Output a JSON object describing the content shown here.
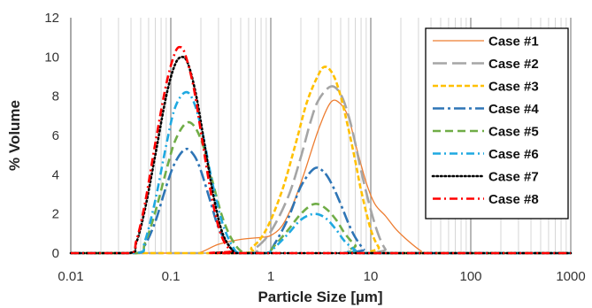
{
  "chart_data": {
    "type": "line",
    "xscale": "log",
    "xlim": [
      0.01,
      1000
    ],
    "ylim": [
      0,
      12
    ],
    "xlabel": "Particle Size [µm]",
    "ylabel": "% Volume",
    "xticks": [
      "0.01",
      "0.1",
      "1",
      "10",
      "100",
      "1000"
    ],
    "xtick_values": [
      0.01,
      0.1,
      1,
      10,
      100,
      1000
    ],
    "yticks": [
      "0",
      "2",
      "4",
      "6",
      "8",
      "10",
      "12"
    ],
    "ytick_values": [
      0,
      2,
      4,
      6,
      8,
      10,
      12
    ],
    "grid": "vertical minor and major, log scale",
    "legend_position": "top-right",
    "series": [
      {
        "name": "Case #1",
        "color": "#ED7D31",
        "dash": "solid",
        "points": [
          [
            0.01,
            0
          ],
          [
            0.15,
            0
          ],
          [
            0.2,
            0.05
          ],
          [
            0.3,
            0.45
          ],
          [
            0.5,
            0.7
          ],
          [
            0.8,
            0.8
          ],
          [
            1,
            0.9
          ],
          [
            1.3,
            1.4
          ],
          [
            1.7,
            2.6
          ],
          [
            2.2,
            4.2
          ],
          [
            3,
            6.3
          ],
          [
            4,
            7.7
          ],
          [
            5,
            7.6
          ],
          [
            6,
            6.9
          ],
          [
            7,
            5.6
          ],
          [
            9,
            3.6
          ],
          [
            11,
            2.5
          ],
          [
            14,
            1.9
          ],
          [
            18,
            1.2
          ],
          [
            24,
            0.6
          ],
          [
            32,
            0.1
          ],
          [
            36,
            0
          ],
          [
            1000,
            0
          ]
        ]
      },
      {
        "name": "Case #2",
        "color": "#A5A5A5",
        "dash": "long-dash",
        "points": [
          [
            0.01,
            0
          ],
          [
            0.5,
            0
          ],
          [
            0.7,
            0.25
          ],
          [
            1,
            1.1
          ],
          [
            1.5,
            2.9
          ],
          [
            2,
            4.9
          ],
          [
            2.5,
            6.7
          ],
          [
            3,
            7.8
          ],
          [
            4,
            8.5
          ],
          [
            5,
            8.1
          ],
          [
            6,
            7.0
          ],
          [
            7,
            5.6
          ],
          [
            8,
            4.2
          ],
          [
            10,
            2.2
          ],
          [
            12,
            0.9
          ],
          [
            14,
            0.2
          ],
          [
            16,
            0
          ],
          [
            1000,
            0
          ]
        ]
      },
      {
        "name": "Case #3",
        "color": "#FFC000",
        "dash": "short-dash",
        "points": [
          [
            0.01,
            0
          ],
          [
            0.45,
            0
          ],
          [
            0.65,
            0.3
          ],
          [
            0.9,
            1.2
          ],
          [
            1.3,
            3.2
          ],
          [
            1.8,
            5.7
          ],
          [
            2.3,
            7.7
          ],
          [
            3,
            9.1
          ],
          [
            3.5,
            9.5
          ],
          [
            4.2,
            9.1
          ],
          [
            5,
            8.0
          ],
          [
            6,
            6.3
          ],
          [
            7,
            4.7
          ],
          [
            8,
            3.2
          ],
          [
            10,
            1.2
          ],
          [
            12,
            0.3
          ],
          [
            14,
            0
          ],
          [
            1000,
            0
          ]
        ]
      },
      {
        "name": "Case #4",
        "color": "#2E75B6",
        "dash": "long-dash-dot",
        "points": [
          [
            0.01,
            0
          ],
          [
            0.045,
            0
          ],
          [
            0.055,
            0.4
          ],
          [
            0.07,
            1.6
          ],
          [
            0.09,
            3.4
          ],
          [
            0.11,
            4.6
          ],
          [
            0.14,
            5.3
          ],
          [
            0.17,
            5.0
          ],
          [
            0.2,
            4.2
          ],
          [
            0.25,
            2.6
          ],
          [
            0.3,
            1.3
          ],
          [
            0.38,
            0.4
          ],
          [
            0.48,
            0
          ],
          [
            0.9,
            0
          ],
          [
            1.1,
            0.5
          ],
          [
            1.5,
            1.8
          ],
          [
            2,
            3.4
          ],
          [
            2.7,
            4.3
          ],
          [
            3.3,
            4.2
          ],
          [
            4,
            3.6
          ],
          [
            5,
            2.5
          ],
          [
            6,
            1.5
          ],
          [
            7,
            0.8
          ],
          [
            8.5,
            0.2
          ],
          [
            10,
            0
          ],
          [
            1000,
            0
          ]
        ]
      },
      {
        "name": "Case #5",
        "color": "#70AD47",
        "dash": "medium-dash",
        "points": [
          [
            0.01,
            0
          ],
          [
            0.045,
            0
          ],
          [
            0.055,
            0.5
          ],
          [
            0.07,
            2.1
          ],
          [
            0.09,
            4.2
          ],
          [
            0.11,
            5.7
          ],
          [
            0.14,
            6.6
          ],
          [
            0.17,
            6.5
          ],
          [
            0.21,
            5.5
          ],
          [
            0.26,
            3.7
          ],
          [
            0.33,
            1.8
          ],
          [
            0.42,
            0.6
          ],
          [
            0.55,
            0
          ],
          [
            0.9,
            0
          ],
          [
            1.1,
            0.4
          ],
          [
            1.5,
            1.2
          ],
          [
            2,
            2.0
          ],
          [
            2.7,
            2.5
          ],
          [
            3.5,
            2.3
          ],
          [
            4.5,
            1.7
          ],
          [
            5.5,
            1.0
          ],
          [
            7,
            0.4
          ],
          [
            9,
            0
          ],
          [
            1000,
            0
          ]
        ]
      },
      {
        "name": "Case #6",
        "color": "#1FA9E1",
        "dash": "dash-dot",
        "points": [
          [
            0.01,
            0
          ],
          [
            0.045,
            0
          ],
          [
            0.055,
            0.6
          ],
          [
            0.07,
            2.7
          ],
          [
            0.09,
            5.5
          ],
          [
            0.11,
            7.4
          ],
          [
            0.14,
            8.2
          ],
          [
            0.17,
            7.7
          ],
          [
            0.21,
            6.0
          ],
          [
            0.26,
            3.6
          ],
          [
            0.33,
            1.5
          ],
          [
            0.42,
            0.3
          ],
          [
            0.5,
            0
          ],
          [
            0.9,
            0
          ],
          [
            1.1,
            0.3
          ],
          [
            1.5,
            1.0
          ],
          [
            2,
            1.7
          ],
          [
            2.7,
            2.0
          ],
          [
            3.5,
            1.8
          ],
          [
            4.5,
            1.2
          ],
          [
            5.5,
            0.6
          ],
          [
            7,
            0.15
          ],
          [
            8,
            0
          ],
          [
            1000,
            0
          ]
        ]
      },
      {
        "name": "Case #7",
        "color": "#000000",
        "dash": "dotted",
        "points": [
          [
            0.01,
            0
          ],
          [
            0.038,
            0
          ],
          [
            0.045,
            0.5
          ],
          [
            0.055,
            2.2
          ],
          [
            0.07,
            5.0
          ],
          [
            0.09,
            8.0
          ],
          [
            0.11,
            9.6
          ],
          [
            0.13,
            10.0
          ],
          [
            0.15,
            9.6
          ],
          [
            0.18,
            8.0
          ],
          [
            0.22,
            5.4
          ],
          [
            0.27,
            2.8
          ],
          [
            0.33,
            1.0
          ],
          [
            0.42,
            0.1
          ],
          [
            0.48,
            0
          ],
          [
            1000,
            0
          ]
        ]
      },
      {
        "name": "Case #8",
        "color": "#FF0000",
        "dash": "dash-dot",
        "points": [
          [
            0.01,
            0
          ],
          [
            0.038,
            0
          ],
          [
            0.045,
            0.6
          ],
          [
            0.055,
            2.5
          ],
          [
            0.07,
            5.6
          ],
          [
            0.09,
            8.6
          ],
          [
            0.11,
            10.2
          ],
          [
            0.125,
            10.5
          ],
          [
            0.14,
            10.1
          ],
          [
            0.17,
            8.4
          ],
          [
            0.21,
            5.5
          ],
          [
            0.26,
            2.7
          ],
          [
            0.32,
            0.9
          ],
          [
            0.4,
            0.1
          ],
          [
            0.45,
            0
          ],
          [
            1000,
            0
          ]
        ]
      }
    ]
  }
}
